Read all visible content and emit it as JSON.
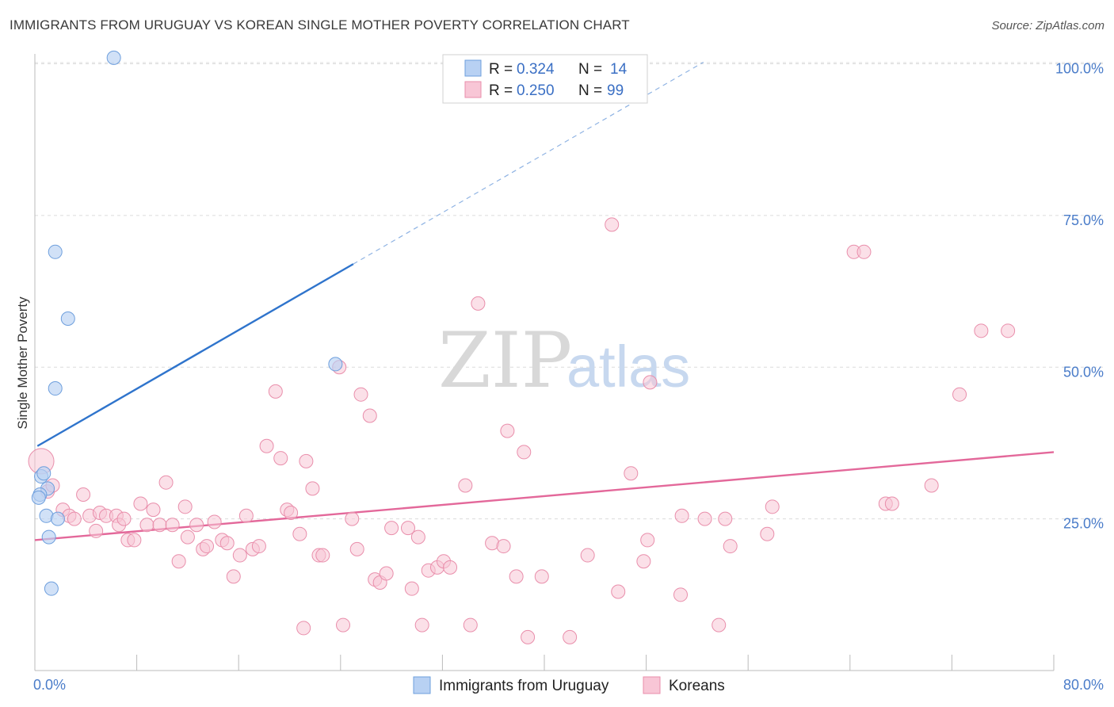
{
  "title": "IMMIGRANTS FROM URUGUAY VS KOREAN SINGLE MOTHER POVERTY CORRELATION CHART",
  "source": "Source: ZipAtlas.com",
  "watermark": {
    "zip": "ZIP",
    "atlas": "atlas"
  },
  "colors": {
    "uruguay_fill": "#b8d1f3",
    "uruguay_stroke": "#6e9fdd",
    "uruguay_line": "#2f74cc",
    "korean_fill": "#f8c6d6",
    "korean_stroke": "#e98eab",
    "korean_line": "#e3689a",
    "grid": "#dcdcdc",
    "tick_text": "#4a7cc9"
  },
  "legend": {
    "entries": [
      {
        "r_label": "R =",
        "r_value": "0.324",
        "n_label": "N =",
        "n_value": "14"
      },
      {
        "r_label": "R =",
        "r_value": "0.250",
        "n_label": "N =",
        "n_value": "99"
      }
    ]
  },
  "chart_data": {
    "type": "scatter",
    "title": "IMMIGRANTS FROM URUGUAY VS KOREAN SINGLE MOTHER POVERTY CORRELATION CHART",
    "xlabel": "",
    "ylabel": "Single Mother Poverty",
    "xlim": [
      0,
      80
    ],
    "ylim": [
      0,
      102
    ],
    "x_tick_labels": [
      "0.0%",
      "80.0%"
    ],
    "y_ticks": [
      25,
      50,
      75,
      100
    ],
    "y_tick_labels": [
      "25.0%",
      "50.0%",
      "75.0%",
      "100.0%"
    ],
    "grid": true,
    "legend_position": "top-center",
    "series": [
      {
        "name": "Immigrants from Uruguay",
        "color": "#6e9fdd",
        "r": 0.324,
        "n": 14,
        "trend": {
          "x0": 0.2,
          "y0": 37.0,
          "x1": 25.0,
          "y1": 67.0,
          "dash_to_x": 52.5
        },
        "points": [
          [
            6.2,
            101.0
          ],
          [
            1.6,
            69.0
          ],
          [
            2.6,
            58.0
          ],
          [
            1.6,
            46.5
          ],
          [
            23.6,
            50.5
          ],
          [
            0.5,
            32.0
          ],
          [
            0.7,
            32.5
          ],
          [
            1.0,
            30.0
          ],
          [
            0.4,
            29.0
          ],
          [
            0.3,
            28.5
          ],
          [
            0.9,
            25.5
          ],
          [
            1.8,
            25.0
          ],
          [
            1.1,
            22.0
          ],
          [
            1.3,
            13.5
          ]
        ]
      },
      {
        "name": "Koreans",
        "color": "#e98eab",
        "r": 0.25,
        "n": 99,
        "trend": {
          "x0": 0.0,
          "y0": 21.5,
          "x1": 80.0,
          "y1": 36.0
        },
        "points": [
          [
            0.5,
            34.5
          ],
          [
            1.0,
            29.5
          ],
          [
            1.4,
            30.5
          ],
          [
            2.2,
            26.5
          ],
          [
            2.7,
            25.5
          ],
          [
            3.1,
            25.0
          ],
          [
            3.8,
            29.0
          ],
          [
            4.3,
            25.5
          ],
          [
            4.8,
            23.0
          ],
          [
            5.1,
            26.0
          ],
          [
            5.6,
            25.5
          ],
          [
            6.4,
            25.5
          ],
          [
            6.6,
            24.0
          ],
          [
            7.0,
            25.0
          ],
          [
            7.3,
            21.5
          ],
          [
            7.8,
            21.5
          ],
          [
            8.3,
            27.5
          ],
          [
            8.8,
            24.0
          ],
          [
            9.3,
            26.5
          ],
          [
            9.8,
            24.0
          ],
          [
            10.3,
            31.0
          ],
          [
            10.8,
            24.0
          ],
          [
            11.3,
            18.0
          ],
          [
            11.8,
            27.0
          ],
          [
            12.0,
            22.0
          ],
          [
            12.7,
            24.0
          ],
          [
            13.2,
            20.0
          ],
          [
            13.5,
            20.5
          ],
          [
            14.1,
            24.5
          ],
          [
            14.7,
            21.5
          ],
          [
            15.1,
            21.0
          ],
          [
            15.6,
            15.5
          ],
          [
            16.1,
            19.0
          ],
          [
            16.6,
            25.5
          ],
          [
            17.1,
            20.0
          ],
          [
            17.6,
            20.5
          ],
          [
            18.2,
            37.0
          ],
          [
            18.9,
            46.0
          ],
          [
            19.3,
            35.0
          ],
          [
            19.8,
            26.5
          ],
          [
            20.1,
            26.0
          ],
          [
            20.8,
            22.5
          ],
          [
            21.3,
            34.5
          ],
          [
            21.8,
            30.0
          ],
          [
            21.1,
            7.0
          ],
          [
            22.3,
            19.0
          ],
          [
            22.6,
            19.0
          ],
          [
            23.9,
            50.0
          ],
          [
            24.2,
            7.5
          ],
          [
            24.9,
            25.0
          ],
          [
            25.3,
            20.0
          ],
          [
            25.6,
            45.5
          ],
          [
            26.3,
            42.0
          ],
          [
            26.7,
            15.0
          ],
          [
            27.1,
            14.5
          ],
          [
            27.6,
            16.0
          ],
          [
            28.0,
            23.5
          ],
          [
            29.3,
            23.5
          ],
          [
            29.6,
            13.5
          ],
          [
            30.1,
            22.0
          ],
          [
            30.4,
            7.5
          ],
          [
            30.9,
            16.5
          ],
          [
            31.6,
            17.0
          ],
          [
            32.1,
            18.0
          ],
          [
            32.6,
            17.0
          ],
          [
            33.8,
            30.5
          ],
          [
            34.2,
            7.5
          ],
          [
            34.8,
            60.5
          ],
          [
            35.9,
            21.0
          ],
          [
            36.8,
            20.5
          ],
          [
            37.1,
            39.5
          ],
          [
            37.8,
            15.5
          ],
          [
            38.4,
            36.0
          ],
          [
            38.7,
            5.5
          ],
          [
            39.8,
            15.5
          ],
          [
            42.0,
            5.5
          ],
          [
            43.4,
            19.0
          ],
          [
            45.3,
            73.5
          ],
          [
            45.8,
            13.0
          ],
          [
            46.8,
            32.5
          ],
          [
            47.8,
            18.0
          ],
          [
            48.3,
            47.5
          ],
          [
            48.1,
            21.5
          ],
          [
            50.7,
            12.5
          ],
          [
            50.8,
            25.5
          ],
          [
            52.6,
            25.0
          ],
          [
            53.7,
            7.5
          ],
          [
            54.2,
            25.0
          ],
          [
            54.6,
            20.5
          ],
          [
            57.5,
            22.5
          ],
          [
            57.9,
            27.0
          ],
          [
            64.3,
            69.0
          ],
          [
            65.1,
            69.0
          ],
          [
            66.8,
            27.5
          ],
          [
            67.3,
            27.5
          ],
          [
            70.4,
            30.5
          ],
          [
            72.6,
            45.5
          ],
          [
            74.3,
            56.0
          ],
          [
            76.4,
            56.0
          ]
        ]
      }
    ]
  }
}
